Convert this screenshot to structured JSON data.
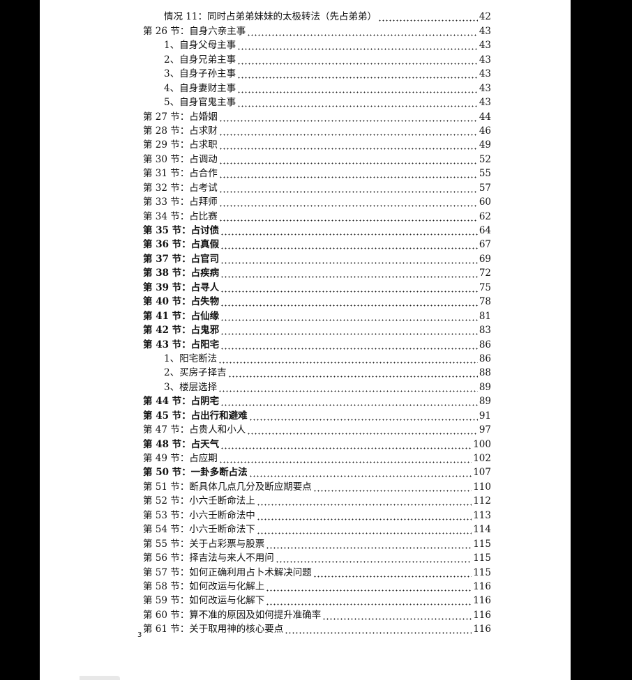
{
  "toc": [
    {
      "label": "情况 11：同时占弟弟妹妹的太极转法（先占弟弟）",
      "page": "42",
      "indent": true,
      "bold": false
    },
    {
      "label": "第 26 节：自身六亲主事",
      "page": "43",
      "indent": false,
      "bold": false
    },
    {
      "label": "1、自身父母主事",
      "page": "43",
      "indent": true,
      "bold": false
    },
    {
      "label": "2、自身兄弟主事",
      "page": "43",
      "indent": true,
      "bold": false
    },
    {
      "label": "3、自身子孙主事",
      "page": "43",
      "indent": true,
      "bold": false
    },
    {
      "label": "4、自身妻财主事",
      "page": "43",
      "indent": true,
      "bold": false
    },
    {
      "label": "5、自身官鬼主事",
      "page": "43",
      "indent": true,
      "bold": false
    },
    {
      "label": "第 27 节：占婚姻",
      "page": "44",
      "indent": false,
      "bold": false
    },
    {
      "label": "第 28 节：占求财",
      "page": "46",
      "indent": false,
      "bold": false
    },
    {
      "label": "第 29 节：占求职",
      "page": "49",
      "indent": false,
      "bold": false
    },
    {
      "label": "第 30 节：占调动",
      "page": "52",
      "indent": false,
      "bold": false
    },
    {
      "label": "第 31 节：占合作",
      "page": "55",
      "indent": false,
      "bold": false
    },
    {
      "label": "第 32 节：占考试",
      "page": "57",
      "indent": false,
      "bold": false
    },
    {
      "label": "第 33 节：占拜师",
      "page": "60",
      "indent": false,
      "bold": false
    },
    {
      "label": "第 34 节：占比赛",
      "page": "62",
      "indent": false,
      "bold": false
    },
    {
      "label": "第 35 节：占讨债",
      "page": "64",
      "indent": false,
      "bold": true
    },
    {
      "label": "第 36 节：占真假",
      "page": "67",
      "indent": false,
      "bold": true
    },
    {
      "label": "第 37 节：占官司",
      "page": "69",
      "indent": false,
      "bold": true
    },
    {
      "label": "第 38 节：占疾病",
      "page": "72",
      "indent": false,
      "bold": true
    },
    {
      "label": "第 39 节：占寻人",
      "page": "75",
      "indent": false,
      "bold": true
    },
    {
      "label": "第 40 节：占失物",
      "page": "78",
      "indent": false,
      "bold": true
    },
    {
      "label": "第 41 节：占仙缘",
      "page": "81",
      "indent": false,
      "bold": true
    },
    {
      "label": "第 42 节：占鬼邪",
      "page": "83",
      "indent": false,
      "bold": true
    },
    {
      "label": "第 43 节：占阳宅",
      "page": "86",
      "indent": false,
      "bold": true
    },
    {
      "label": "1、阳宅断法",
      "page": "86",
      "indent": true,
      "bold": false
    },
    {
      "label": "2、买房子择吉",
      "page": "88",
      "indent": true,
      "bold": false
    },
    {
      "label": "3、楼层选择",
      "page": "89",
      "indent": true,
      "bold": false
    },
    {
      "label": "第 44 节：占阴宅",
      "page": "89",
      "indent": false,
      "bold": true
    },
    {
      "label": "第 45 节：占出行和避难",
      "page": "91",
      "indent": false,
      "bold": true
    },
    {
      "label": "第 47 节：占贵人和小人",
      "page": "97",
      "indent": false,
      "bold": false
    },
    {
      "label": "第 48 节：占天气",
      "page": "100",
      "indent": false,
      "bold": true
    },
    {
      "label": "第 49 节：占应期",
      "page": "102",
      "indent": false,
      "bold": false
    },
    {
      "label": "第 50 节：一卦多断占法",
      "page": "107",
      "indent": false,
      "bold": true
    },
    {
      "label": "第 51 节：断具体几点几分及断应期要点",
      "page": "110",
      "indent": false,
      "bold": false
    },
    {
      "label": "第 52 节：小六壬断命法上",
      "page": "112",
      "indent": false,
      "bold": false
    },
    {
      "label": "第 53 节：小六壬断命法中",
      "page": "113",
      "indent": false,
      "bold": false
    },
    {
      "label": "第 54 节：小六壬断命法下",
      "page": "114",
      "indent": false,
      "bold": false
    },
    {
      "label": "第 55 节：关于占彩票与股票",
      "page": "115",
      "indent": false,
      "bold": false
    },
    {
      "label": "第 56 节：择吉法与来人不用问",
      "page": "115",
      "indent": false,
      "bold": false
    },
    {
      "label": "第 57 节：如何正确利用占卜术解决问题",
      "page": "115",
      "indent": false,
      "bold": false
    },
    {
      "label": "第 58 节：如何改运与化解上",
      "page": "116",
      "indent": false,
      "bold": false
    },
    {
      "label": "第 59 节：如何改运与化解下",
      "page": "116",
      "indent": false,
      "bold": false
    },
    {
      "label": "第 60 节：算不准的原因及如何提升准确率",
      "page": "116",
      "indent": false,
      "bold": false
    },
    {
      "label": "第 61 节：关于取用神的核心要点",
      "page": "116",
      "indent": false,
      "bold": false
    }
  ],
  "page_number": "3"
}
